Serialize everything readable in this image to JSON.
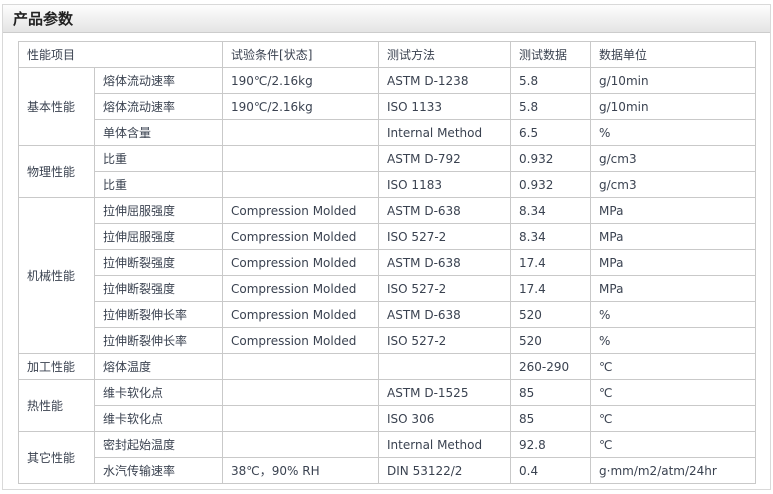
{
  "panel": {
    "title": "产品参数"
  },
  "table": {
    "headers": [
      "性能项目",
      "试验条件[状态]",
      "测试方法",
      "测试数据",
      "数据单位"
    ],
    "groups": [
      {
        "name": "基本性能",
        "rows": [
          [
            "熔体流动速率",
            "190℃/2.16kg",
            "ASTM D-1238",
            "5.8",
            "g/10min"
          ],
          [
            "熔体流动速率",
            "190℃/2.16kg",
            "ISO 1133",
            "5.8",
            "g/10min"
          ],
          [
            "单体含量",
            "",
            "Internal Method",
            "6.5",
            "%"
          ]
        ]
      },
      {
        "name": "物理性能",
        "rows": [
          [
            "比重",
            "",
            "ASTM D-792",
            "0.932",
            "g/cm3"
          ],
          [
            "比重",
            "",
            "ISO 1183",
            "0.932",
            "g/cm3"
          ]
        ]
      },
      {
        "name": "机械性能",
        "rows": [
          [
            "拉伸屈服强度",
            "Compression Molded",
            "ASTM D-638",
            "8.34",
            "MPa"
          ],
          [
            "拉伸屈服强度",
            "Compression Molded",
            "ISO 527-2",
            "8.34",
            "MPa"
          ],
          [
            "拉伸断裂强度",
            "Compression Molded",
            "ASTM D-638",
            "17.4",
            "MPa"
          ],
          [
            "拉伸断裂强度",
            "Compression Molded",
            "ISO 527-2",
            "17.4",
            "MPa"
          ],
          [
            "拉伸断裂伸长率",
            "Compression Molded",
            "ASTM D-638",
            "520",
            "%"
          ],
          [
            "拉伸断裂伸长率",
            "Compression Molded",
            "ISO 527-2",
            "520",
            "%"
          ]
        ]
      },
      {
        "name": "加工性能",
        "rows": [
          [
            "熔体温度",
            "",
            "",
            "260-290",
            "℃"
          ]
        ]
      },
      {
        "name": "热性能",
        "rows": [
          [
            "维卡软化点",
            "",
            "ASTM D-1525",
            "85",
            "℃"
          ],
          [
            "维卡软化点",
            "",
            "ISO 306",
            "85",
            "℃"
          ]
        ]
      },
      {
        "name": "其它性能",
        "rows": [
          [
            "密封起始温度",
            "",
            "Internal Method",
            "92.8",
            "℃"
          ],
          [
            "水汽传输速率",
            "38℃，90% RH",
            "DIN 53122/2",
            "0.4",
            "g·mm/m2/atm/24hr"
          ]
        ]
      }
    ]
  },
  "colors": {
    "panel_border": "#d9d9d9",
    "table_border": "#c9c9c9",
    "text": "#3a4250",
    "header_gradient_top": "#fdfdfd",
    "header_gradient_bottom": "#e4e4e4"
  }
}
